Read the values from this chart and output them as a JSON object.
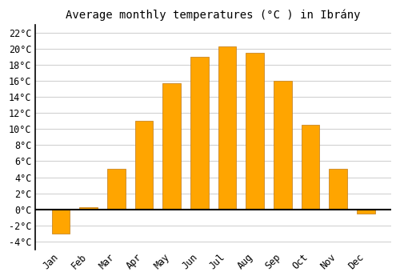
{
  "title": "Average monthly temperatures (°C ) in Ibrány",
  "months": [
    "Jan",
    "Feb",
    "Mar",
    "Apr",
    "May",
    "Jun",
    "Jul",
    "Aug",
    "Sep",
    "Oct",
    "Nov",
    "Dec"
  ],
  "values": [
    -3.0,
    0.3,
    5.0,
    11.0,
    15.7,
    19.0,
    20.3,
    19.5,
    16.0,
    10.5,
    5.0,
    -0.5
  ],
  "bar_color": "#FFA500",
  "bar_edge_color": "#C8882A",
  "ylim": [
    -5,
    23
  ],
  "yticks": [
    -4,
    -2,
    0,
    2,
    4,
    6,
    8,
    10,
    12,
    14,
    16,
    18,
    20,
    22
  ],
  "background_color": "#ffffff",
  "grid_color": "#cccccc",
  "title_fontsize": 10,
  "tick_fontsize": 8.5,
  "font_family": "monospace"
}
